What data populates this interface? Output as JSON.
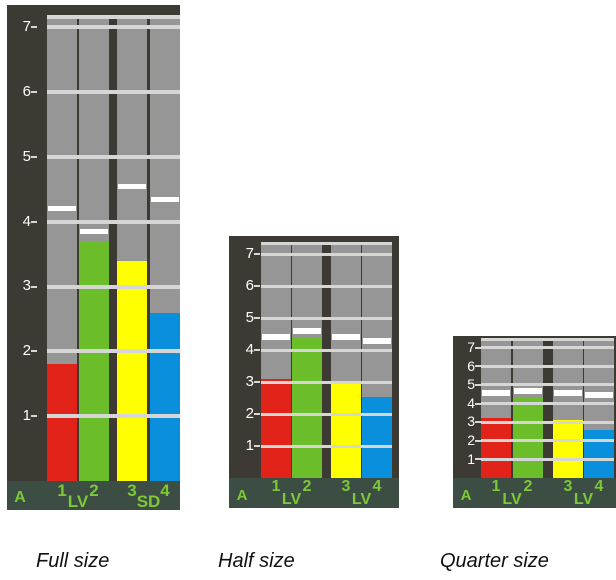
{
  "meters": [
    {
      "caption": "Full size",
      "scale": [
        "1",
        "2",
        "3",
        "4",
        "5",
        "6",
        "7"
      ],
      "bank": "A",
      "channels": [
        {
          "number": "1",
          "level": 1.8,
          "peak": 4.2,
          "color": "#e2231a"
        },
        {
          "number": "2",
          "level": 3.7,
          "peak": 3.85,
          "color": "#6bbd2a"
        },
        {
          "number": "3",
          "level": 3.4,
          "peak": 4.55,
          "color": "#ffff00"
        },
        {
          "number": "4",
          "level": 2.6,
          "peak": 4.35,
          "color": "#0a8fdc"
        }
      ],
      "groups": [
        {
          "label": "LV"
        },
        {
          "label": "SD"
        }
      ]
    },
    {
      "caption": "Half size",
      "scale": [
        "1",
        "2",
        "3",
        "4",
        "5",
        "6",
        "7"
      ],
      "bank": "A",
      "channels": [
        {
          "number": "1",
          "level": 3.1,
          "peak": 4.4,
          "color": "#e2231a"
        },
        {
          "number": "2",
          "level": 4.4,
          "peak": 4.6,
          "color": "#6bbd2a"
        },
        {
          "number": "3",
          "level": 3.05,
          "peak": 4.4,
          "color": "#ffff00"
        },
        {
          "number": "4",
          "level": 2.55,
          "peak": 4.3,
          "color": "#0a8fdc"
        }
      ],
      "groups": [
        {
          "label": "LV"
        },
        {
          "label": "LV"
        }
      ]
    },
    {
      "caption": "Quarter size",
      "scale": [
        "1",
        "2",
        "3",
        "4",
        "5",
        "6",
        "7"
      ],
      "bank": "A",
      "channels": [
        {
          "number": "1",
          "level": 3.2,
          "peak": 4.55,
          "color": "#e2231a"
        },
        {
          "number": "2",
          "level": 4.3,
          "peak": 4.65,
          "color": "#6bbd2a"
        },
        {
          "number": "3",
          "level": 3.1,
          "peak": 4.55,
          "color": "#ffff00"
        },
        {
          "number": "4",
          "level": 2.6,
          "peak": 4.45,
          "color": "#0a8fdc"
        }
      ],
      "groups": [
        {
          "label": "LV"
        },
        {
          "label": "LV"
        }
      ]
    }
  ]
}
